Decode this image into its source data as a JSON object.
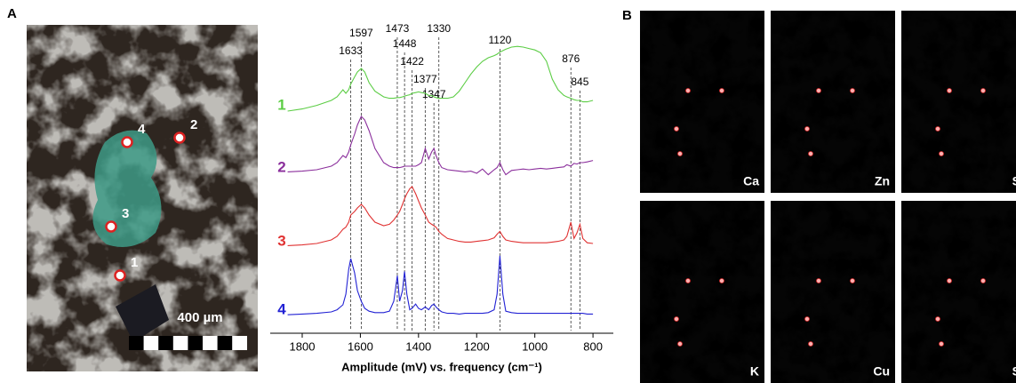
{
  "panel_a": {
    "label": "A",
    "points": [
      "1",
      "2",
      "3",
      "4"
    ],
    "scale_bar": "400 µm"
  },
  "chart_data": {
    "type": "line",
    "xlabel": "Amplitude (mV) vs. frequency (cm⁻¹)",
    "xlim": [
      1910,
      730
    ],
    "xticks": [
      1800,
      1600,
      1400,
      1200,
      1000,
      800
    ],
    "peaks": [
      1633,
      1597,
      1473,
      1448,
      1422,
      1377,
      1347,
      1330,
      1120,
      876,
      845
    ],
    "x": [
      1850,
      1800,
      1750,
      1700,
      1680,
      1660,
      1650,
      1640,
      1633,
      1620,
      1610,
      1597,
      1585,
      1570,
      1550,
      1520,
      1500,
      1485,
      1473,
      1465,
      1455,
      1448,
      1440,
      1430,
      1422,
      1410,
      1400,
      1390,
      1377,
      1365,
      1355,
      1347,
      1340,
      1330,
      1320,
      1300,
      1280,
      1260,
      1240,
      1220,
      1200,
      1180,
      1160,
      1140,
      1130,
      1120,
      1110,
      1100,
      1080,
      1060,
      1040,
      1020,
      1000,
      980,
      960,
      940,
      920,
      900,
      890,
      876,
      865,
      855,
      845,
      835,
      820,
      800
    ],
    "series": [
      {
        "name": "1",
        "color": "#5ccd45",
        "values": [
          0,
          0.3,
          0.8,
          1.5,
          2.0,
          3.0,
          2.5,
          3.0,
          3.8,
          4.8,
          5.5,
          6.0,
          5.5,
          4.0,
          2.8,
          2.0,
          1.8,
          1.8,
          1.9,
          1.9,
          2.0,
          2.1,
          2.2,
          2.3,
          2.5,
          2.6,
          2.7,
          2.6,
          2.5,
          2.2,
          2.2,
          2.0,
          1.9,
          1.8,
          1.8,
          1.8,
          2.0,
          2.8,
          4.0,
          5.2,
          6.2,
          7.0,
          7.5,
          7.8,
          8.0,
          8.3,
          8.5,
          8.7,
          9.0,
          9.1,
          9.0,
          8.8,
          8.6,
          8.2,
          7.0,
          4.5,
          3.0,
          2.2,
          2.0,
          1.8,
          1.6,
          1.5,
          1.5,
          1.3,
          1.3,
          1.5
        ]
      },
      {
        "name": "2",
        "color": "#8b2f9c",
        "values": [
          0.2,
          0.3,
          0.5,
          1.0,
          1.5,
          2.5,
          2.2,
          3.0,
          4.0,
          5.5,
          6.8,
          8.0,
          7.5,
          6.0,
          3.5,
          1.5,
          1.0,
          0.8,
          0.8,
          0.8,
          0.9,
          1.0,
          1.0,
          1.0,
          1.0,
          1.0,
          1.2,
          1.5,
          3.5,
          2.0,
          3.0,
          3.5,
          2.5,
          1.5,
          0.8,
          0.5,
          0.4,
          0.3,
          0.2,
          0.3,
          0.0,
          0.6,
          -0.2,
          0.5,
          0.8,
          1.5,
          0.5,
          -0.2,
          0.4,
          0.5,
          0.6,
          0.5,
          0.6,
          0.7,
          0.6,
          0.7,
          0.8,
          0.9,
          1.2,
          1.0,
          1.4,
          1.3,
          1.5,
          1.5,
          1.6,
          1.8
        ]
      },
      {
        "name": "3",
        "color": "#e03232",
        "values": [
          0.2,
          0.3,
          0.5,
          1.0,
          1.5,
          2.5,
          2.8,
          3.5,
          4.5,
          5.0,
          5.5,
          6.0,
          5.5,
          4.5,
          3.5,
          3.0,
          3.2,
          3.8,
          4.5,
          5.0,
          6.0,
          6.8,
          7.5,
          8.2,
          8.5,
          7.5,
          6.5,
          5.5,
          4.5,
          3.5,
          3.2,
          3.0,
          2.8,
          2.2,
          1.8,
          1.2,
          1.0,
          0.8,
          0.7,
          0.7,
          0.8,
          0.9,
          1.0,
          1.3,
          1.8,
          2.2,
          1.5,
          1.0,
          0.8,
          0.7,
          0.6,
          0.6,
          0.6,
          0.6,
          0.6,
          0.7,
          0.8,
          1.0,
          1.5,
          3.5,
          1.2,
          2.0,
          3.2,
          1.2,
          0.6,
          0.5
        ]
      },
      {
        "name": "4",
        "color": "#2222d4",
        "values": [
          0.1,
          0.2,
          0.3,
          0.5,
          0.8,
          1.5,
          3.0,
          6.5,
          8.0,
          6.0,
          3.5,
          2.0,
          1.0,
          0.6,
          0.4,
          0.4,
          0.6,
          2.0,
          5.6,
          2.0,
          3.5,
          6.2,
          3.0,
          0.8,
          1.0,
          1.6,
          1.0,
          0.8,
          1.2,
          0.8,
          1.4,
          1.6,
          1.2,
          0.8,
          0.5,
          0.3,
          0.3,
          0.2,
          0.3,
          0.3,
          0.3,
          0.3,
          0.4,
          0.8,
          3.0,
          8.4,
          3.0,
          0.6,
          0.4,
          0.3,
          0.3,
          0.3,
          0.3,
          0.3,
          0.3,
          0.3,
          0.3,
          0.3,
          0.3,
          0.3,
          0.3,
          0.3,
          0.3,
          0.3,
          0.2,
          0.2
        ]
      }
    ]
  },
  "panel_b": {
    "label": "B",
    "maps": [
      "Ca",
      "Zn",
      "S",
      "K",
      "Cu",
      "S"
    ]
  }
}
